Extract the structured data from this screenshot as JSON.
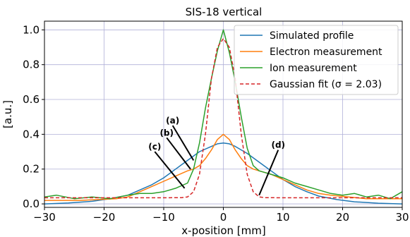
{
  "chart_data": {
    "type": "line",
    "title": "SIS-18 vertical",
    "xlabel": "x-position [mm]",
    "ylabel": "[a.u.]",
    "xlim": [
      -30,
      30
    ],
    "ylim": [
      -0.02,
      1.05
    ],
    "xticks": [
      -30,
      -20,
      -10,
      0,
      10,
      20,
      30
    ],
    "xtick_labels": [
      "−30",
      "−20",
      "−10",
      "0",
      "10",
      "20",
      "30"
    ],
    "yticks": [
      0.0,
      0.2,
      0.4,
      0.6,
      0.8,
      1.0
    ],
    "ytick_labels": [
      "0.0",
      "0.2",
      "0.4",
      "0.6",
      "0.8",
      "1.0"
    ],
    "grid": true,
    "legend_position": "top-right",
    "series": [
      {
        "name": "Simulated profile",
        "color": "#1f77b4",
        "style": "solid",
        "x": [
          -30,
          -26,
          -22,
          -19,
          -16,
          -14,
          -12,
          -10,
          -8,
          -6,
          -4,
          -2,
          -1,
          0,
          1,
          2,
          4,
          6,
          8,
          10,
          12,
          14,
          16,
          19,
          22,
          26,
          30
        ],
        "y": [
          0.0,
          0.005,
          0.015,
          0.03,
          0.05,
          0.08,
          0.11,
          0.15,
          0.2,
          0.25,
          0.3,
          0.33,
          0.345,
          0.35,
          0.345,
          0.33,
          0.29,
          0.24,
          0.19,
          0.14,
          0.1,
          0.07,
          0.045,
          0.025,
          0.012,
          0.004,
          0.0
        ]
      },
      {
        "name": "Electron measurement",
        "color": "#ff7f0e",
        "style": "solid",
        "x": [
          -30,
          -27,
          -24,
          -21,
          -18,
          -16,
          -14,
          -12,
          -10,
          -8,
          -6,
          -5,
          -4,
          -3,
          -2,
          -1,
          0,
          1,
          2,
          3,
          4,
          5,
          6,
          8,
          10,
          12,
          14,
          16,
          18,
          21,
          24,
          27,
          30
        ],
        "y": [
          0.02,
          0.02,
          0.02,
          0.025,
          0.03,
          0.04,
          0.07,
          0.1,
          0.13,
          0.16,
          0.19,
          0.2,
          0.22,
          0.26,
          0.31,
          0.37,
          0.4,
          0.37,
          0.31,
          0.26,
          0.22,
          0.2,
          0.19,
          0.17,
          0.14,
          0.11,
          0.08,
          0.06,
          0.05,
          0.04,
          0.03,
          0.03,
          0.03
        ]
      },
      {
        "name": "Ion measurement",
        "color": "#2ca02c",
        "style": "solid",
        "x": [
          -30,
          -28,
          -25,
          -22,
          -19,
          -16,
          -14,
          -12,
          -10,
          -8,
          -6,
          -5,
          -4,
          -3,
          -2,
          -1,
          0,
          1,
          2,
          3,
          4,
          5,
          6,
          8,
          10,
          12,
          14,
          16,
          18,
          20,
          22,
          24,
          26,
          28,
          30
        ],
        "y": [
          0.04,
          0.05,
          0.03,
          0.04,
          0.03,
          0.05,
          0.06,
          0.06,
          0.07,
          0.09,
          0.12,
          0.2,
          0.35,
          0.55,
          0.72,
          0.88,
          1.0,
          0.87,
          0.7,
          0.5,
          0.32,
          0.22,
          0.19,
          0.17,
          0.15,
          0.12,
          0.1,
          0.08,
          0.06,
          0.05,
          0.06,
          0.04,
          0.05,
          0.03,
          0.07
        ]
      },
      {
        "name": "Gaussian fit (σ = 2.03)",
        "color": "#d62728",
        "style": "dashed",
        "x": [
          -30,
          -10,
          -7,
          -6,
          -5,
          -4,
          -3,
          -2,
          -1,
          0,
          1,
          2,
          3,
          4,
          5,
          6,
          7,
          10,
          30
        ],
        "y": [
          0.035,
          0.035,
          0.036,
          0.04,
          0.07,
          0.17,
          0.4,
          0.72,
          0.9,
          0.95,
          0.9,
          0.72,
          0.4,
          0.17,
          0.07,
          0.04,
          0.036,
          0.035,
          0.035
        ]
      }
    ],
    "annotations": [
      {
        "label": "(a)",
        "line_from": [
          -5,
          0.25
        ],
        "line_to": [
          -8.5,
          0.45
        ]
      },
      {
        "label": "(b)",
        "line_from": [
          -5.5,
          0.2
        ],
        "line_to": [
          -9.5,
          0.38
        ]
      },
      {
        "label": "(c)",
        "line_from": [
          -6.5,
          0.09
        ],
        "line_to": [
          -11.5,
          0.3
        ]
      },
      {
        "label": "(d)",
        "line_from": [
          6,
          0.05
        ],
        "line_to": [
          9.2,
          0.31
        ]
      }
    ]
  }
}
